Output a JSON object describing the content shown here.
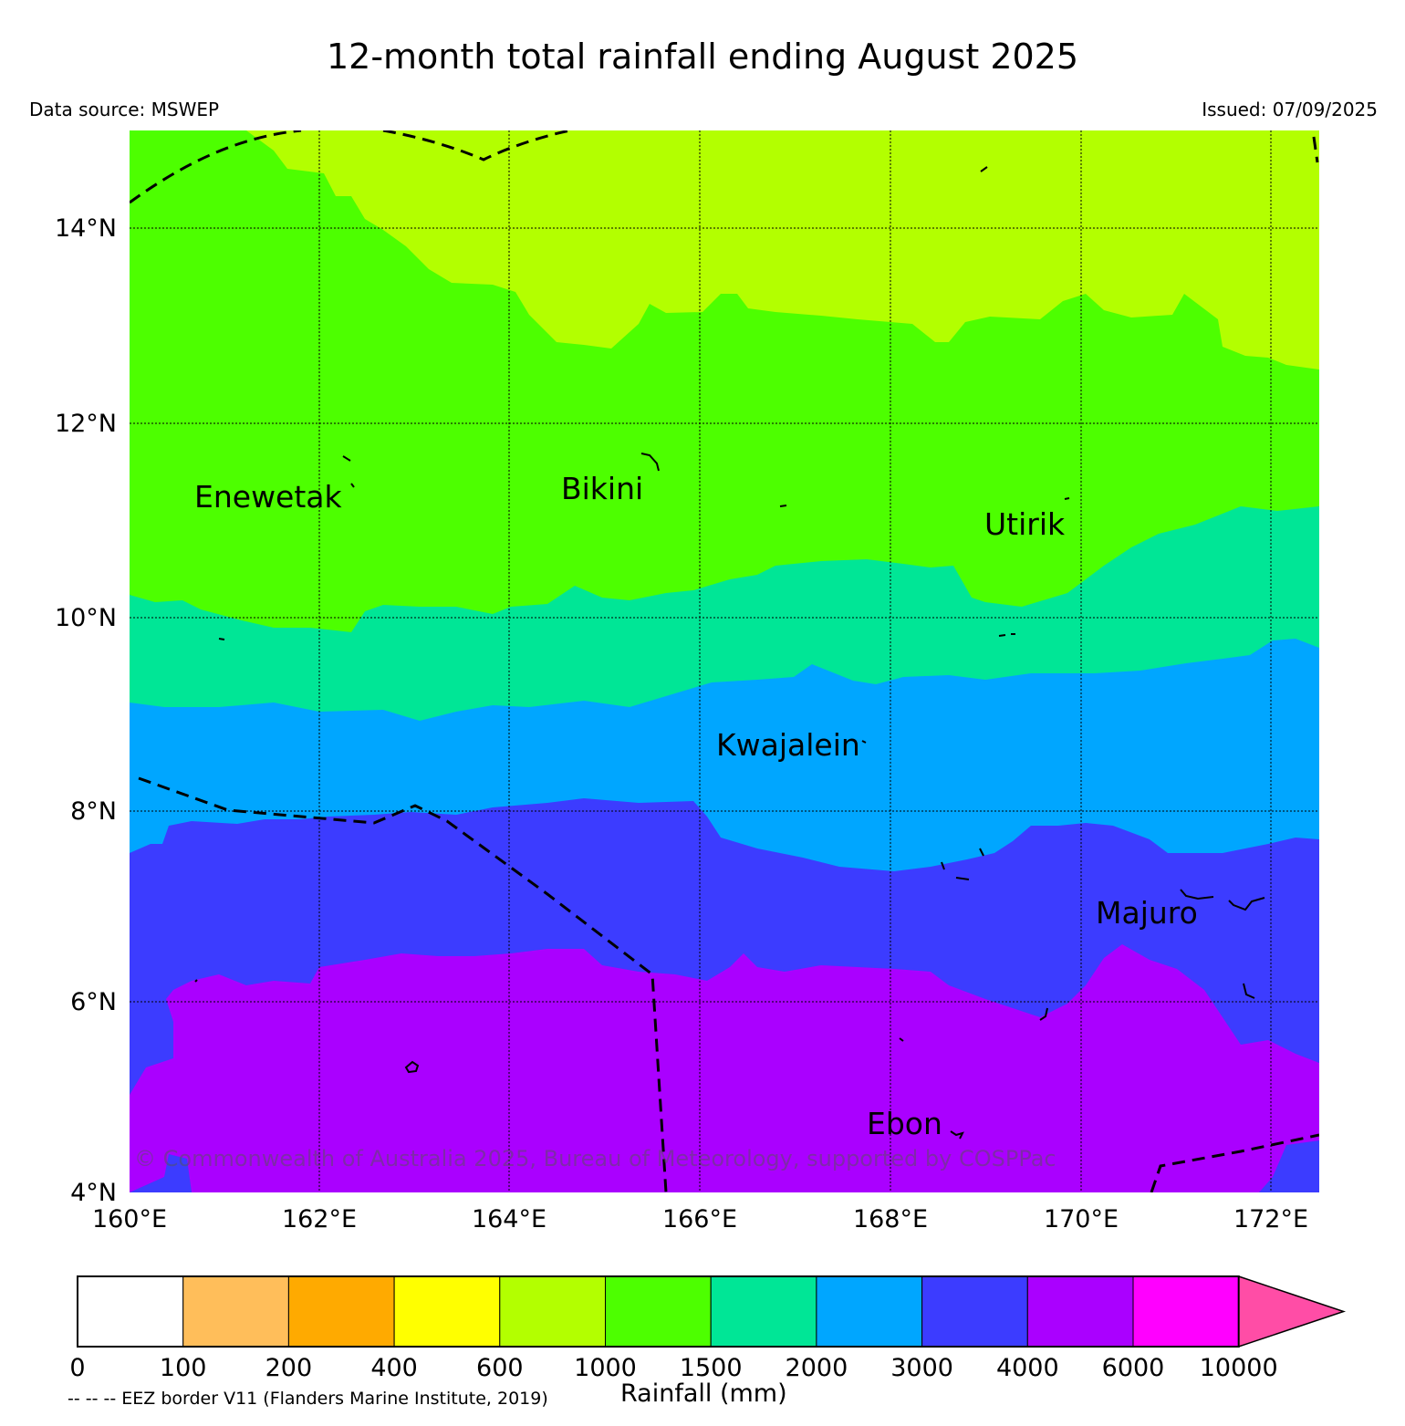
{
  "title": "12-month total rainfall ending August 2025",
  "data_source": "Data source: MSWEP",
  "issued": "Issued: 07/09/2025",
  "axes": {
    "lon_ticks": [
      "160°E",
      "162°E",
      "164°E",
      "166°E",
      "168°E",
      "170°E",
      "172°E"
    ],
    "lat_ticks": [
      "14°N",
      "12°N",
      "10°N",
      "8°N",
      "6°N",
      "4°N"
    ]
  },
  "places": [
    "Enewetak",
    "Bikini",
    "Utirik",
    "Kwajalein",
    "Majuro",
    "Ebon"
  ],
  "copyright": "© Commonwealth of Australia 2025, Bureau of Meteorology, supported by COSPPac",
  "legend": {
    "title": "Rainfall (mm)",
    "note": "-- -- -- EEZ border V11 (Flanders Marine Institute, 2019)",
    "labels": [
      "0",
      "100",
      "200",
      "400",
      "600",
      "1000",
      "1500",
      "2000",
      "3000",
      "4000",
      "6000",
      "10000"
    ],
    "colors": [
      "#ffffff",
      "#ffbe5a",
      "#ffaa00",
      "#ffff00",
      "#b3ff00",
      "#4dff00",
      "#00e696",
      "#00a6ff",
      "#3c3cff",
      "#aa00ff",
      "#ff00ff",
      "#ff4da6"
    ]
  },
  "map_colors": {
    "c600": "#b3ff00",
    "c1000": "#4dff00",
    "c1500": "#00e696",
    "c2000": "#00a6ff",
    "c3000": "#3c3cff",
    "c4000": "#aa00ff"
  }
}
